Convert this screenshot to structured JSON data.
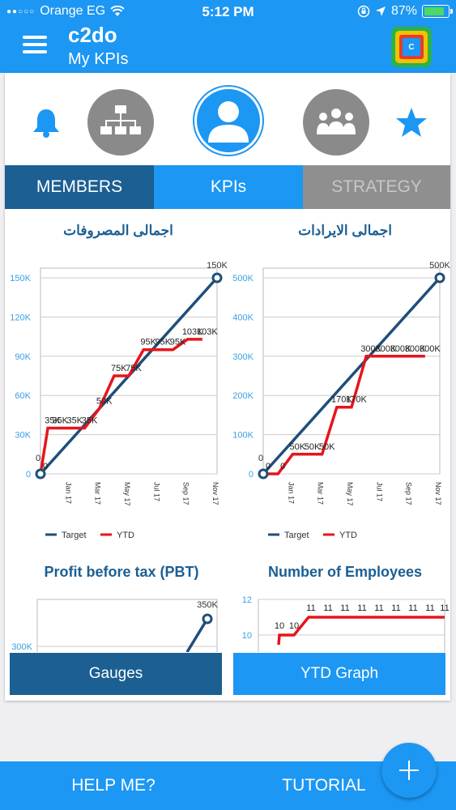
{
  "status_bar": {
    "carrier": "Orange EG",
    "time": "5:12 PM",
    "battery": "87%",
    "battery_level": 0.87
  },
  "header": {
    "title": "c2do",
    "subtitle": "My KPIs",
    "logo_icon": "c2do-logo-icon"
  },
  "icons": [
    "bell-icon",
    "org-chart-icon",
    "person-icon",
    "team-icon",
    "star-icon"
  ],
  "tabs": {
    "members": "MEMBERS",
    "kpis": "KPIs",
    "strategy": "STRATEGY"
  },
  "colors": {
    "primary": "#1c97f3",
    "dark": "#1b5f93",
    "target": "#1f4e79",
    "ytd": "#e8141b",
    "grey": "#8a8a8a"
  },
  "chart_data": [
    {
      "type": "line",
      "title": "اجمالى المصروفات",
      "x_ticks": [
        "Jan 17",
        "Mar 17",
        "May 17",
        "Jul 17",
        "Sep 17",
        "Nov 17"
      ],
      "y_ticks": [
        "0",
        "30K",
        "60K",
        "90K",
        "120K",
        "150K"
      ],
      "ylim": [
        0,
        150000
      ],
      "legend": [
        "Target",
        "YTD"
      ],
      "series": [
        {
          "name": "Target",
          "points": [
            [
              0,
              0
            ],
            [
              12,
              150000
            ]
          ],
          "labels": [
            "0",
            "150K"
          ]
        },
        {
          "name": "YTD",
          "points": [
            [
              0,
              0
            ],
            [
              0.5,
              35000
            ],
            [
              1,
              35000
            ],
            [
              2,
              35000
            ],
            [
              3,
              35000
            ],
            [
              4,
              50000
            ],
            [
              5,
              75000
            ],
            [
              6,
              75000
            ],
            [
              7,
              95000
            ],
            [
              8,
              95000
            ],
            [
              9,
              95000
            ],
            [
              10,
              103000
            ],
            [
              11,
              103000
            ]
          ],
          "labels": [
            "0",
            "35K",
            "35K",
            "35K",
            "35K",
            "50K",
            "75K",
            "75K",
            "95K",
            "95K",
            "95K",
            "103K",
            "103K"
          ]
        }
      ]
    },
    {
      "type": "line",
      "title": "اجمالى الايرادات",
      "x_ticks": [
        "Jan 17",
        "Mar 17",
        "May 17",
        "Jul 17",
        "Sep 17",
        "Nov 17"
      ],
      "y_ticks": [
        "0",
        "100K",
        "200K",
        "300K",
        "400K",
        "500K"
      ],
      "ylim": [
        0,
        500000
      ],
      "legend": [
        "Target",
        "YTD"
      ],
      "series": [
        {
          "name": "Target",
          "points": [
            [
              0,
              0
            ],
            [
              12,
              500000
            ]
          ],
          "labels": [
            "0",
            "500K"
          ]
        },
        {
          "name": "YTD",
          "points": [
            [
              0,
              0
            ],
            [
              1,
              0
            ],
            [
              2,
              50000
            ],
            [
              3,
              50000
            ],
            [
              4,
              50000
            ],
            [
              5,
              170000
            ],
            [
              6,
              170000
            ],
            [
              7,
              300000
            ],
            [
              8,
              300000
            ],
            [
              9,
              300000
            ],
            [
              10,
              300000
            ],
            [
              11,
              300000
            ]
          ],
          "labels": [
            "0",
            "0",
            "50K",
            "50K",
            "50K",
            "170K",
            "170K",
            "300K",
            "300K",
            "300K",
            "300K",
            "300K"
          ]
        }
      ]
    },
    {
      "type": "line",
      "title": "Profit before tax (PBT)",
      "y_ticks": [
        "300K"
      ],
      "series": [
        {
          "name": "Target",
          "labels": [
            "350K"
          ]
        }
      ]
    },
    {
      "type": "line",
      "title": "Number of Employees",
      "y_ticks": [
        "10",
        "12"
      ],
      "series": [
        {
          "name": "YTD",
          "labels": [
            "10",
            "10",
            "11",
            "11",
            "11",
            "11",
            "11",
            "11",
            "11",
            "11",
            "11"
          ]
        }
      ]
    }
  ],
  "buttons": {
    "gauges": "Gauges",
    "ytd_graph": "YTD Graph"
  },
  "footer": {
    "help": "HELP ME?",
    "tutorial": "TUTORIAL",
    "fab_icon": "plus-icon"
  }
}
